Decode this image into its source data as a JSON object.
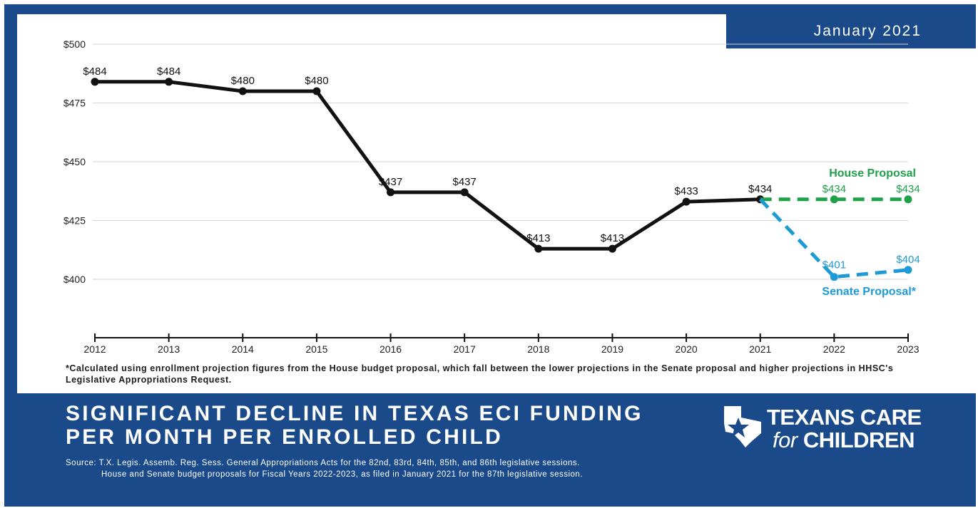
{
  "header": {
    "date_badge": "January 2021"
  },
  "chart_data": {
    "type": "line",
    "title": "",
    "xlabel": "",
    "ylabel": "",
    "ylim": [
      372,
      500
    ],
    "y_ticks": [
      400,
      425,
      450,
      475,
      500
    ],
    "y_tick_labels": [
      "$400",
      "$425",
      "$450",
      "$475",
      "$500"
    ],
    "x": [
      2012,
      2013,
      2014,
      2015,
      2016,
      2017,
      2018,
      2019,
      2020,
      2021,
      2022,
      2023
    ],
    "x_tick_labels": [
      "2012",
      "2013",
      "2014",
      "2015",
      "2016",
      "2017",
      "2018",
      "2019",
      "2020",
      "2021",
      "2022",
      "2023"
    ],
    "grid": true,
    "series": [
      {
        "x": [
          2012,
          2013,
          2014,
          2015,
          2016,
          2017,
          2018,
          2019,
          2020,
          2021
        ],
        "values": [
          484,
          484,
          480,
          480,
          437,
          437,
          413,
          413,
          433,
          434
        ],
        "labels": [
          "$484",
          "$484",
          "$480",
          "$480",
          "$437",
          "$437",
          "$413",
          "$413",
          "$433",
          "$434"
        ],
        "color": "#111111",
        "style": "solid"
      },
      {
        "name": "House Proposal",
        "x": [
          2021,
          2022,
          2023
        ],
        "values": [
          434,
          434,
          434
        ],
        "labels": [
          "",
          "$434",
          "$434"
        ],
        "color": "#1fa04a",
        "style": "dashed"
      },
      {
        "name": "Senate Proposal*",
        "x": [
          2021,
          2022,
          2023
        ],
        "values": [
          434,
          401,
          404
        ],
        "labels": [
          "",
          "$401",
          "$404"
        ],
        "color": "#1e9ad6",
        "style": "dashed"
      }
    ],
    "footnote": "*Calculated using enrollment projection figures from the House budget proposal, which fall between the lower projections in the Senate proposal and higher projections in HHSC's Legislative Appropriations Request."
  },
  "title": {
    "line1": "SIGNIFICANT DECLINE IN TEXAS ECI FUNDING",
    "line2": "PER MONTH PER ENROLLED CHILD"
  },
  "source": {
    "line1": "Source: T.X. Legis. Assemb. Reg. Sess. General Appropriations Acts for the 82nd, 83rd, 84th, 85th, and 86th legislative sessions.",
    "line2": "House and Senate budget proposals for Fiscal Years 2022-2023, as filed in January 2021 for the 87th legislative session."
  },
  "logo": {
    "line1": "TEXANS CARE",
    "for": "for",
    "children": "CHILDREN",
    "icon": "texas-star-map-icon"
  }
}
